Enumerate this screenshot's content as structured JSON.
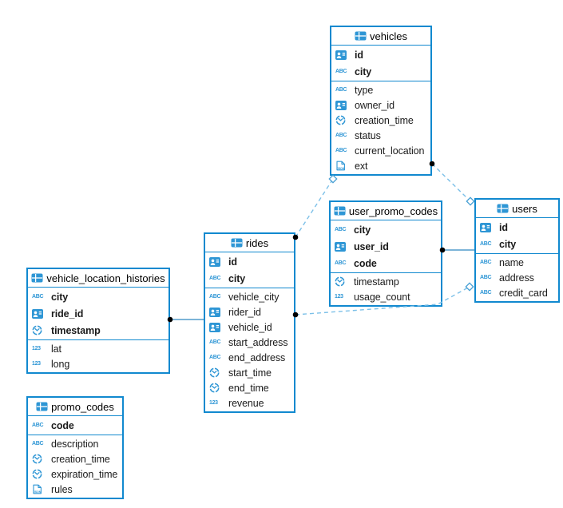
{
  "diagram": {
    "tables": [
      {
        "name": "vehicles",
        "primary_key_columns": [
          {
            "name": "id",
            "type": "id"
          },
          {
            "name": "city",
            "type": "text"
          }
        ],
        "columns": [
          {
            "name": "type",
            "type": "text"
          },
          {
            "name": "owner_id",
            "type": "id"
          },
          {
            "name": "creation_time",
            "type": "time"
          },
          {
            "name": "status",
            "type": "text"
          },
          {
            "name": "current_location",
            "type": "text"
          },
          {
            "name": "ext",
            "type": "json"
          }
        ]
      },
      {
        "name": "user_promo_codes",
        "primary_key_columns": [
          {
            "name": "city",
            "type": "text"
          },
          {
            "name": "user_id",
            "type": "id"
          },
          {
            "name": "code",
            "type": "text"
          }
        ],
        "columns": [
          {
            "name": "timestamp",
            "type": "time"
          },
          {
            "name": "usage_count",
            "type": "numeric"
          }
        ]
      },
      {
        "name": "users",
        "primary_key_columns": [
          {
            "name": "id",
            "type": "id"
          },
          {
            "name": "city",
            "type": "text"
          }
        ],
        "columns": [
          {
            "name": "name",
            "type": "text"
          },
          {
            "name": "address",
            "type": "text"
          },
          {
            "name": "credit_card",
            "type": "text"
          }
        ]
      },
      {
        "name": "rides",
        "primary_key_columns": [
          {
            "name": "id",
            "type": "id"
          },
          {
            "name": "city",
            "type": "text"
          }
        ],
        "columns": [
          {
            "name": "vehicle_city",
            "type": "text"
          },
          {
            "name": "rider_id",
            "type": "id"
          },
          {
            "name": "vehicle_id",
            "type": "id"
          },
          {
            "name": "start_address",
            "type": "text"
          },
          {
            "name": "end_address",
            "type": "text"
          },
          {
            "name": "start_time",
            "type": "time"
          },
          {
            "name": "end_time",
            "type": "time"
          },
          {
            "name": "revenue",
            "type": "numeric"
          }
        ]
      },
      {
        "name": "vehicle_location_histories",
        "primary_key_columns": [
          {
            "name": "city",
            "type": "text"
          },
          {
            "name": "ride_id",
            "type": "id"
          },
          {
            "name": "timestamp",
            "type": "time"
          }
        ],
        "columns": [
          {
            "name": "lat",
            "type": "numeric"
          },
          {
            "name": "long",
            "type": "numeric"
          }
        ]
      },
      {
        "name": "promo_codes",
        "primary_key_columns": [
          {
            "name": "code",
            "type": "text"
          }
        ],
        "columns": [
          {
            "name": "description",
            "type": "text"
          },
          {
            "name": "creation_time",
            "type": "time"
          },
          {
            "name": "expiration_time",
            "type": "time"
          },
          {
            "name": "rules",
            "type": "json"
          }
        ]
      }
    ],
    "icon_legend": {
      "text": "ABC",
      "numeric": "123"
    },
    "relationships": [
      {
        "from": "vehicles",
        "to": "users",
        "line": "dashed",
        "from_marker": "dot",
        "to_marker": "diamond"
      },
      {
        "from": "rides",
        "to": "vehicles",
        "line": "dashed",
        "from_marker": "dot",
        "to_marker": "diamond"
      },
      {
        "from": "user_promo_codes",
        "to": "users",
        "line": "solid",
        "from_marker": "dot",
        "to_marker": "none"
      },
      {
        "from": "rides",
        "to": "users",
        "line": "dashed",
        "from_marker": "dot",
        "to_marker": "diamond"
      },
      {
        "from": "vehicle_location_histories",
        "to": "rides",
        "line": "solid",
        "from_marker": "dot",
        "to_marker": "none"
      }
    ],
    "colors": {
      "table_border": "#1189cf",
      "icon_blue": "#2e96d5",
      "dashed_line": "#7cc0e8",
      "solid_line": "#2e86c0",
      "marker_dot": "#000000",
      "diamond_stroke": "#49a0d4",
      "text": "#1b1b1b"
    }
  }
}
